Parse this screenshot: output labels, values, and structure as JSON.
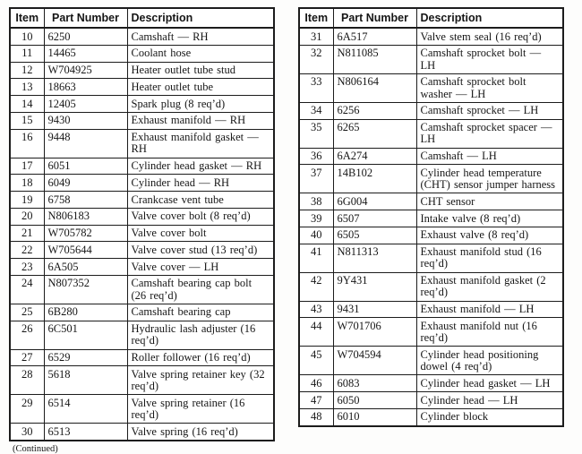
{
  "continued_note": "(Continued)",
  "colors": {
    "ink": "#161616",
    "table_border": "#1c1c1c",
    "background": "#fdfdfc"
  },
  "tables": [
    {
      "headers": [
        "Item",
        "Part Number",
        "Description"
      ],
      "rows": [
        {
          "item": "10",
          "part_number": "6250",
          "description": "Camshaft — RH"
        },
        {
          "item": "11",
          "part_number": "14465",
          "description": "Coolant hose"
        },
        {
          "item": "12",
          "part_number": "W704925",
          "description": "Heater outlet tube stud"
        },
        {
          "item": "13",
          "part_number": "18663",
          "description": "Heater outlet tube"
        },
        {
          "item": "14",
          "part_number": "12405",
          "description": "Spark plug (8 req’d)"
        },
        {
          "item": "15",
          "part_number": "9430",
          "description": "Exhaust manifold — RH"
        },
        {
          "item": "16",
          "part_number": "9448",
          "description": "Exhaust manifold gasket — RH"
        },
        {
          "item": "17",
          "part_number": "6051",
          "description": "Cylinder head gasket — RH"
        },
        {
          "item": "18",
          "part_number": "6049",
          "description": "Cylinder head — RH"
        },
        {
          "item": "19",
          "part_number": "6758",
          "description": "Crankcase vent tube"
        },
        {
          "item": "20",
          "part_number": "N806183",
          "description": "Valve cover bolt (8 req’d)"
        },
        {
          "item": "21",
          "part_number": "W705782",
          "description": "Valve cover bolt"
        },
        {
          "item": "22",
          "part_number": "W705644",
          "description": "Valve cover stud (13 req’d)"
        },
        {
          "item": "23",
          "part_number": "6A505",
          "description": "Valve cover — LH"
        },
        {
          "item": "24",
          "part_number": "N807352",
          "description": "Camshaft bearing cap bolt (26 req’d)"
        },
        {
          "item": "25",
          "part_number": "6B280",
          "description": "Camshaft bearing cap"
        },
        {
          "item": "26",
          "part_number": "6C501",
          "description": "Hydraulic lash adjuster (16 req’d)"
        },
        {
          "item": "27",
          "part_number": "6529",
          "description": "Roller follower (16 req’d)"
        },
        {
          "item": "28",
          "part_number": "5618",
          "description": "Valve spring retainer key (32 req’d)"
        },
        {
          "item": "29",
          "part_number": "6514",
          "description": "Valve spring retainer (16 req’d)"
        },
        {
          "item": "30",
          "part_number": "6513",
          "description": "Valve spring (16 req’d)"
        }
      ]
    },
    {
      "headers": [
        "Item",
        "Part Number",
        "Description"
      ],
      "rows": [
        {
          "item": "31",
          "part_number": "6A517",
          "description": "Valve stem seal (16 req’d)"
        },
        {
          "item": "32",
          "part_number": "N811085",
          "description": "Camshaft sprocket bolt — LH"
        },
        {
          "item": "33",
          "part_number": "N806164",
          "description": "Camshaft sprocket bolt washer — LH"
        },
        {
          "item": "34",
          "part_number": "6256",
          "description": "Camshaft sprocket — LH"
        },
        {
          "item": "35",
          "part_number": "6265",
          "description": "Camshaft sprocket spacer — LH"
        },
        {
          "item": "36",
          "part_number": "6A274",
          "description": "Camshaft — LH"
        },
        {
          "item": "37",
          "part_number": "14B102",
          "description": "Cylinder head temperature (CHT) sensor jumper harness"
        },
        {
          "item": "38",
          "part_number": "6G004",
          "description": "CHT sensor"
        },
        {
          "item": "39",
          "part_number": "6507",
          "description": "Intake valve (8 req’d)"
        },
        {
          "item": "40",
          "part_number": "6505",
          "description": "Exhaust valve (8 req’d)"
        },
        {
          "item": "41",
          "part_number": "N811313",
          "description": "Exhaust manifold stud (16 req’d)"
        },
        {
          "item": "42",
          "part_number": "9Y431",
          "description": "Exhaust manifold gasket (2 req’d)"
        },
        {
          "item": "43",
          "part_number": "9431",
          "description": "Exhaust manifold — LH"
        },
        {
          "item": "44",
          "part_number": "W701706",
          "description": "Exhaust manifold nut (16 req’d)"
        },
        {
          "item": "45",
          "part_number": "W704594",
          "description": "Cylinder head positioning dowel (4 req’d)"
        },
        {
          "item": "46",
          "part_number": "6083",
          "description": "Cylinder head gasket — LH"
        },
        {
          "item": "47",
          "part_number": "6050",
          "description": "Cylinder head — LH"
        },
        {
          "item": "48",
          "part_number": "6010",
          "description": "Cylinder block"
        }
      ]
    }
  ]
}
